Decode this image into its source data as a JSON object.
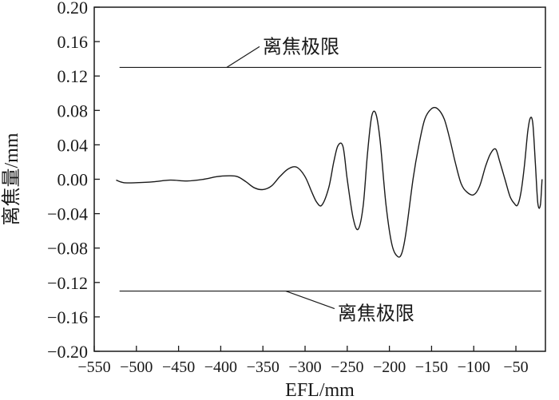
{
  "chart_data": {
    "type": "line",
    "xlabel": "EFL/mm",
    "ylabel": "离焦量/mm",
    "xlim": [
      -550,
      -15
    ],
    "ylim": [
      -0.2,
      0.2
    ],
    "xticks": [
      -550,
      -500,
      -450,
      -400,
      -350,
      -300,
      -250,
      -200,
      -150,
      -100,
      -50
    ],
    "xtick_labels": [
      "−550",
      "−500",
      "−450",
      "−400",
      "−350",
      "−300",
      "−250",
      "−200",
      "−150",
      "−100",
      "−50"
    ],
    "yticks": [
      0.2,
      0.16,
      0.12,
      0.08,
      0.04,
      0.0,
      -0.04,
      -0.08,
      -0.12,
      -0.16,
      -0.2
    ],
    "ytick_labels": [
      "0.20",
      "0.16",
      "0.12",
      "0.08",
      "0.04",
      "0.00",
      "−0.04",
      "−0.08",
      "−0.12",
      "−0.16",
      "−0.20"
    ],
    "grid": false,
    "series": [
      {
        "color": "#1a1a1a",
        "x": [
          -524,
          -515,
          -500,
          -480,
          -460,
          -440,
          -420,
          -405,
          -390,
          -380,
          -370,
          -360,
          -350,
          -340,
          -330,
          -320,
          -310,
          -300,
          -292,
          -286,
          -280,
          -272,
          -266,
          -261,
          -255,
          -250,
          -243,
          -237,
          -231,
          -226,
          -221,
          -216,
          -211,
          -204,
          -197,
          -190,
          -185,
          -180,
          -172,
          -165,
          -158,
          -150,
          -143,
          -135,
          -128,
          -122,
          -115,
          -108,
          -100,
          -93,
          -86,
          -80,
          -74,
          -69,
          -63,
          -57,
          -52,
          -48,
          -44,
          -40,
          -36,
          -33,
          -30,
          -27,
          -24,
          -21,
          -19
        ],
        "y": [
          -0.001,
          -0.004,
          -0.004,
          -0.003,
          -0.001,
          -0.002,
          0.0,
          0.003,
          0.004,
          0.003,
          -0.003,
          -0.01,
          -0.012,
          -0.008,
          0.003,
          0.012,
          0.014,
          0.003,
          -0.015,
          -0.027,
          -0.03,
          -0.01,
          0.02,
          0.039,
          0.038,
          0.0,
          -0.045,
          -0.058,
          -0.03,
          0.03,
          0.073,
          0.076,
          0.045,
          -0.03,
          -0.076,
          -0.09,
          -0.085,
          -0.06,
          0.0,
          0.04,
          0.07,
          0.082,
          0.082,
          0.07,
          0.045,
          0.02,
          -0.005,
          -0.015,
          -0.018,
          -0.008,
          0.015,
          0.03,
          0.035,
          0.02,
          0.0,
          -0.02,
          -0.028,
          -0.03,
          -0.015,
          0.015,
          0.055,
          0.071,
          0.065,
          0.02,
          -0.028,
          -0.03,
          0.0
        ]
      }
    ],
    "reference_lines": [
      {
        "y": 0.13,
        "label": "离焦极限",
        "label_position": "above",
        "label_x": -390
      },
      {
        "y": -0.13,
        "label": "离焦极限",
        "label_position": "below",
        "label_x": -320
      }
    ]
  }
}
